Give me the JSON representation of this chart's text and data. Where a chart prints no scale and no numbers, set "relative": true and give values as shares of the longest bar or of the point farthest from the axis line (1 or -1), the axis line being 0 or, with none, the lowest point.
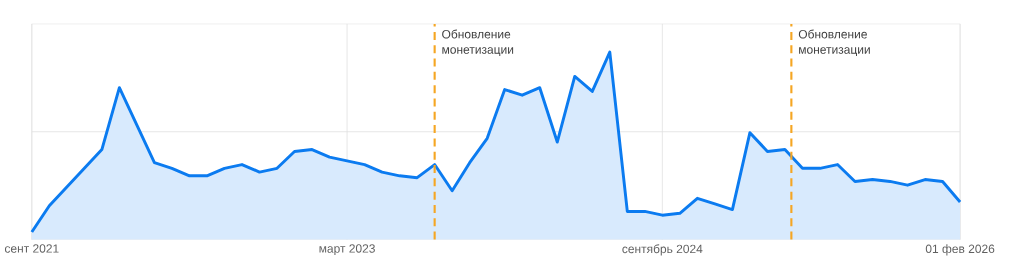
{
  "chart_data": {
    "type": "area",
    "relative": true,
    "grid": true,
    "tick_labels": "x",
    "x": [
      "2021-09",
      "2021-10",
      "2021-11",
      "2021-12",
      "2022-01",
      "2022-02",
      "2022-03",
      "2022-04",
      "2022-05",
      "2022-06",
      "2022-07",
      "2022-08",
      "2022-09",
      "2022-10",
      "2022-11",
      "2022-12",
      "2023-01",
      "2023-02",
      "2023-03",
      "2023-04",
      "2023-05",
      "2023-06",
      "2023-07",
      "2023-08",
      "2023-09",
      "2023-10",
      "2023-11",
      "2023-12",
      "2024-01",
      "2024-02",
      "2024-03",
      "2024-04",
      "2024-05",
      "2024-06",
      "2024-07",
      "2024-08",
      "2024-09",
      "2024-10",
      "2024-11",
      "2024-12",
      "2025-01",
      "2025-02",
      "2025-03",
      "2025-04",
      "2025-05",
      "2025-06",
      "2025-07",
      "2025-08",
      "2025-09",
      "2025-10",
      "2025-11",
      "2025-12",
      "2026-01",
      "2026-02"
    ],
    "series": [
      {
        "color": "#0b7bf0",
        "values": [
          0.04,
          0.18,
          0.28,
          0.38,
          0.48,
          0.81,
          0.61,
          0.41,
          0.38,
          0.34,
          0.34,
          0.38,
          0.4,
          0.36,
          0.38,
          0.47,
          0.48,
          0.44,
          0.42,
          0.4,
          0.36,
          0.34,
          0.33,
          0.4,
          0.26,
          0.41,
          0.54,
          0.8,
          0.77,
          0.81,
          0.52,
          0.87,
          0.79,
          1,
          0.15,
          0.15,
          0.13,
          0.14,
          0.22,
          0.19,
          0.16,
          0.57,
          0.47,
          0.48,
          0.38,
          0.38,
          0.4,
          0.31,
          0.32,
          0.31,
          0.29,
          0.32,
          0.31,
          0.2
        ]
      }
    ],
    "xlim": [
      "2021-09",
      "2026-02"
    ],
    "xticks": [
      {
        "value": "2021-09",
        "label": "сент 2021"
      },
      {
        "value": "2023-03",
        "label": "март 2023"
      },
      {
        "value": "2024-09",
        "label": "сентябрь 2024"
      },
      {
        "value": "2026-02",
        "label": "01 фев 2026"
      }
    ],
    "ref_lines": [
      {
        "axis": "x",
        "value": "2023-08",
        "label": "Обновление монетизации",
        "color": "#f5a623",
        "line_style": "dashed"
      },
      {
        "axis": "x",
        "value": "2025-04-12",
        "label": "Обновление монетизации",
        "color": "#f5a623",
        "line_style": "dashed"
      }
    ]
  }
}
